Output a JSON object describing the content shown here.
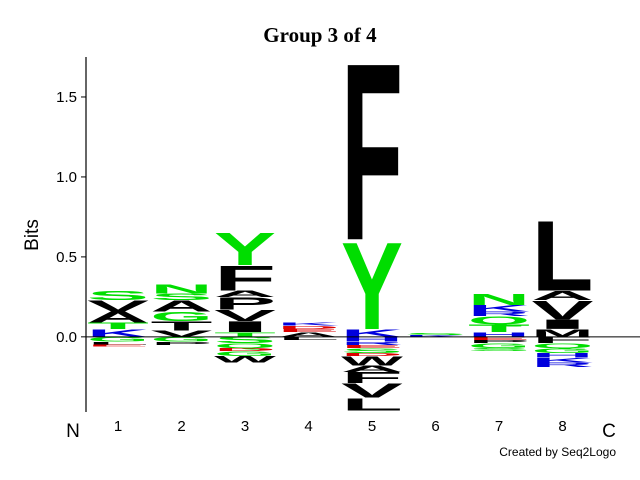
{
  "chart_data": {
    "type": "logo",
    "title": "Group 3 of 4",
    "y_label": "Bits",
    "n_label": "N",
    "c_label": "C",
    "credit": "Created by Seq2Logo",
    "ylim": [
      -0.47,
      1.75
    ],
    "yticks": [
      {
        "value": 0,
        "label": "0.0"
      },
      0.5,
      {
        "value": 1,
        "label": "1.0"
      },
      1.5
    ],
    "categories": [
      "1",
      "2",
      "3",
      "4",
      "5",
      "6",
      "7",
      "8"
    ],
    "positions": [
      {
        "letters": [
          {
            "letter": "K",
            "value": 0.05,
            "color": "#0000dd"
          },
          {
            "letter": "T",
            "value": 0.04,
            "color": "#00dd00"
          },
          {
            "letter": "A",
            "value": 0.07,
            "color": "#000000"
          },
          {
            "letter": "V",
            "value": 0.07,
            "color": "#000000"
          },
          {
            "letter": "S",
            "value": 0.06,
            "color": "#00dd00"
          },
          {
            "letter": "G",
            "value": -0.03,
            "color": "#00dd00"
          },
          {
            "letter": "L",
            "value": -0.02,
            "color": "#000000"
          },
          {
            "letter": "E",
            "value": -0.01,
            "color": "#dd0000"
          }
        ]
      },
      {
        "letters": [
          {
            "letter": "V",
            "value": 0.04,
            "color": "#000000"
          },
          {
            "letter": "T",
            "value": 0.06,
            "color": "#000000"
          },
          {
            "letter": "G",
            "value": 0.06,
            "color": "#00dd00"
          },
          {
            "letter": "A",
            "value": 0.07,
            "color": "#000000"
          },
          {
            "letter": "S",
            "value": 0.04,
            "color": "#00dd00"
          },
          {
            "letter": "N",
            "value": 0.06,
            "color": "#00dd00"
          },
          {
            "letter": "G",
            "value": -0.03,
            "color": "#00dd00"
          },
          {
            "letter": "P",
            "value": -0.02,
            "color": "#000000"
          }
        ]
      },
      {
        "letters": [
          {
            "letter": "T",
            "value": 0.03,
            "color": "#00dd00"
          },
          {
            "letter": "I",
            "value": 0.07,
            "color": "#000000"
          },
          {
            "letter": "V",
            "value": 0.07,
            "color": "#000000"
          },
          {
            "letter": "P",
            "value": 0.08,
            "color": "#000000"
          },
          {
            "letter": "A",
            "value": 0.04,
            "color": "#000000"
          },
          {
            "letter": "F",
            "value": 0.16,
            "color": "#000000"
          },
          {
            "letter": "Y",
            "value": 0.21,
            "color": "#00dd00"
          },
          {
            "letter": "S",
            "value": -0.04,
            "color": "#00dd00"
          },
          {
            "letter": "Q",
            "value": -0.03,
            "color": "#00dd00"
          },
          {
            "letter": "D",
            "value": -0.02,
            "color": "#dd0000"
          },
          {
            "letter": "G",
            "value": -0.03,
            "color": "#00dd00"
          },
          {
            "letter": "W",
            "value": -0.04,
            "color": "#000000"
          }
        ]
      },
      {
        "letters": [
          {
            "letter": "A",
            "value": 0.03,
            "color": "#000000"
          },
          {
            "letter": "E",
            "value": 0.02,
            "color": "#dd0000"
          },
          {
            "letter": "D",
            "value": 0.02,
            "color": "#dd0000"
          },
          {
            "letter": "K",
            "value": 0.02,
            "color": "#0000dd"
          },
          {
            "letter": "L",
            "value": -0.02,
            "color": "#000000"
          }
        ]
      },
      {
        "letters": [
          {
            "letter": "K",
            "value": 0.05,
            "color": "#0000dd"
          },
          {
            "letter": "Y",
            "value": 0.56,
            "color": "#00dd00"
          },
          {
            "letter": "F",
            "value": 1.14,
            "color": "#000000"
          },
          {
            "letter": "H",
            "value": -0.03,
            "color": "#0000dd"
          },
          {
            "letter": "R",
            "value": -0.02,
            "color": "#0000dd"
          },
          {
            "letter": "E",
            "value": -0.02,
            "color": "#dd0000"
          },
          {
            "letter": "S",
            "value": -0.03,
            "color": "#00dd00"
          },
          {
            "letter": "D",
            "value": -0.02,
            "color": "#dd0000"
          },
          {
            "letter": "W",
            "value": -0.06,
            "color": "#000000"
          },
          {
            "letter": "A",
            "value": -0.04,
            "color": "#000000"
          },
          {
            "letter": "F",
            "value": -0.07,
            "color": "#000000"
          },
          {
            "letter": "V",
            "value": -0.09,
            "color": "#000000"
          },
          {
            "letter": "L",
            "value": -0.08,
            "color": "#000000"
          }
        ]
      },
      {
        "letters": [
          {
            "letter": "K",
            "value": 0.01,
            "color": "#0000dd"
          },
          {
            "letter": "S",
            "value": 0.01,
            "color": "#00dd00"
          }
        ]
      },
      {
        "letters": [
          {
            "letter": "H",
            "value": 0.03,
            "color": "#0000dd"
          },
          {
            "letter": "T",
            "value": 0.05,
            "color": "#00dd00"
          },
          {
            "letter": "Q",
            "value": 0.05,
            "color": "#00dd00"
          },
          {
            "letter": "R",
            "value": 0.03,
            "color": "#0000dd"
          },
          {
            "letter": "K",
            "value": 0.04,
            "color": "#0000dd"
          },
          {
            "letter": "N",
            "value": 0.07,
            "color": "#00dd00"
          },
          {
            "letter": "E",
            "value": -0.02,
            "color": "#dd0000"
          },
          {
            "letter": "P",
            "value": -0.02,
            "color": "#000000"
          },
          {
            "letter": "G",
            "value": -0.03,
            "color": "#00dd00"
          },
          {
            "letter": "S",
            "value": -0.02,
            "color": "#00dd00"
          }
        ]
      },
      {
        "letters": [
          {
            "letter": "M",
            "value": 0.05,
            "color": "#000000"
          },
          {
            "letter": "I",
            "value": 0.06,
            "color": "#000000"
          },
          {
            "letter": "V",
            "value": 0.12,
            "color": "#000000"
          },
          {
            "letter": "A",
            "value": 0.06,
            "color": "#000000"
          },
          {
            "letter": "L",
            "value": 0.45,
            "color": "#000000"
          },
          {
            "letter": "F",
            "value": -0.04,
            "color": "#000000"
          },
          {
            "letter": "Q",
            "value": -0.03,
            "color": "#00dd00"
          },
          {
            "letter": "G",
            "value": -0.03,
            "color": "#00dd00"
          },
          {
            "letter": "H",
            "value": -0.03,
            "color": "#0000dd"
          },
          {
            "letter": "K",
            "value": -0.03,
            "color": "#0000dd"
          },
          {
            "letter": "R",
            "value": -0.03,
            "color": "#0000dd"
          }
        ]
      }
    ]
  }
}
